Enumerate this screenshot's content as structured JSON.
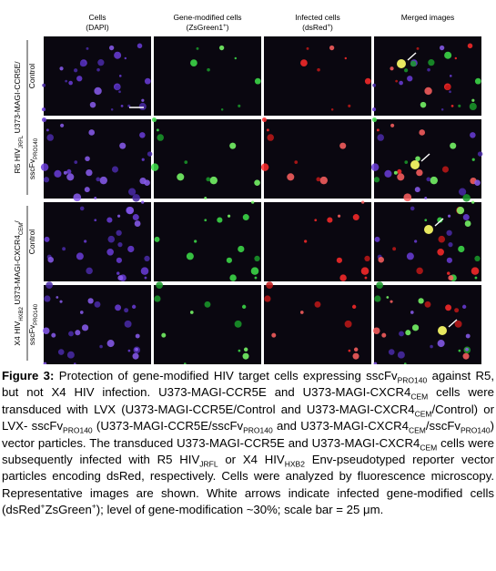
{
  "columns": [
    {
      "title": "Cells",
      "subtitle": [
        {
          "text": "(DAPI)"
        }
      ]
    },
    {
      "title": "Gene-modified cells",
      "subtitle": [
        {
          "text": "(ZsGreen1"
        },
        {
          "text": "+",
          "style": "sup"
        },
        {
          "text": ")"
        }
      ]
    },
    {
      "title": "Infected cells",
      "subtitle": [
        {
          "text": "(dsRed"
        },
        {
          "text": "+",
          "style": "sup"
        },
        {
          "text": ")"
        }
      ]
    },
    {
      "title": "Merged images",
      "subtitle": []
    }
  ],
  "rows": [
    {
      "group": [
        {
          "text": "R5 HIV"
        },
        {
          "text": "JRFL",
          "style": "sub"
        },
        {
          "text": " U373-MAGI-CCR5E/"
        }
      ],
      "labels": [
        [
          {
            "text": "Control"
          }
        ],
        [
          {
            "text": "sscFv"
          },
          {
            "text": "PRO140",
            "style": "sub"
          }
        ]
      ]
    },
    {
      "group": [
        {
          "text": "X4 HIV"
        },
        {
          "text": "HXB2",
          "style": "sub"
        },
        {
          "text": " U373-MAGI-CXCR4"
        },
        {
          "text": "CEM",
          "style": "sub"
        },
        {
          "text": "/"
        }
      ],
      "labels": [
        [
          {
            "text": "Control"
          }
        ],
        [
          {
            "text": "sscFv"
          },
          {
            "text": "PRO140",
            "style": "sub"
          }
        ]
      ]
    }
  ],
  "caption": [
    {
      "text": "Figure 3:",
      "style": "bold"
    },
    {
      "text": " Protection of gene-modified HIV target cells expressing sscFv"
    },
    {
      "text": "PRO140",
      "style": "sub"
    },
    {
      "text": " against R5, but not X4 HIV infection. U373-MAGI-CCR5E and U373-MAGI-CXCR4"
    },
    {
      "text": "CEM",
      "style": "sub"
    },
    {
      "text": " cells were transduced with LVX (U373-MAGI-CCR5E/Control and U373-MAGI-CXCR4"
    },
    {
      "text": "CEM",
      "style": "sub"
    },
    {
      "text": "/Control) or LVX- sscFv"
    },
    {
      "text": "PRO140",
      "style": "sub"
    },
    {
      "text": " (U373-MAGI-CCR5E/sscFv"
    },
    {
      "text": "PRO140",
      "style": "sub"
    },
    {
      "text": " and U373-MAGI-CXCR4"
    },
    {
      "text": "CEM",
      "style": "sub"
    },
    {
      "text": "/sscFv"
    },
    {
      "text": "PRO140",
      "style": "sub"
    },
    {
      "text": ") vector particles. The transduced U373-MAGI-CCR5E and U373-MAGI-CXCR4"
    },
    {
      "text": "CEM",
      "style": "sub"
    },
    {
      "text": " cells were subsequently infected with R5 HIV"
    },
    {
      "text": "JRFL",
      "style": "sub"
    },
    {
      "text": " or X4 HIV"
    },
    {
      "text": "HXB2",
      "style": "sub"
    },
    {
      "text": " Env-pseudotyped reporter vector particles encoding dsRed, respectively. Cells were analyzed by fluorescence microscopy. Representative images are shown. White arrows indicate infected gene-modified cells (dsRed"
    },
    {
      "text": "+",
      "style": "sup"
    },
    {
      "text": "ZsGreen"
    },
    {
      "text": "+",
      "style": "sup"
    },
    {
      "text": "); level of gene-modification ~30%; scale bar = 25 μm."
    }
  ]
}
